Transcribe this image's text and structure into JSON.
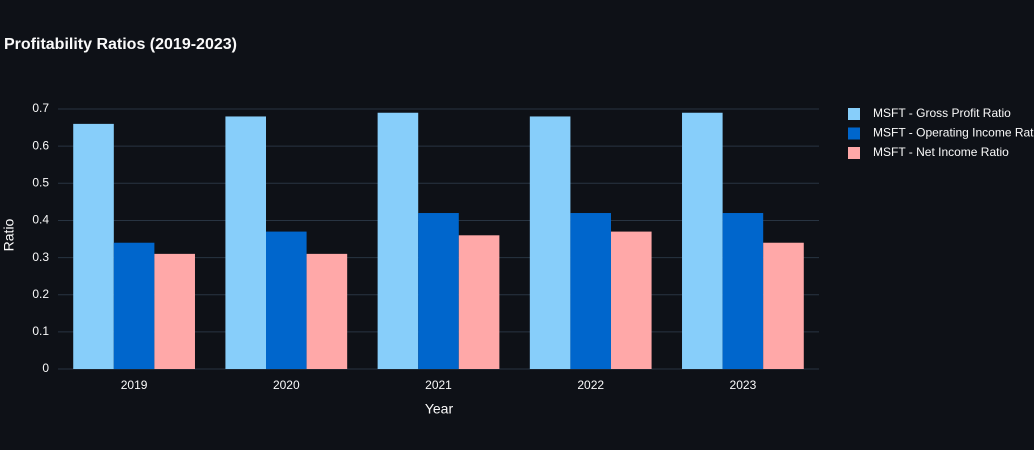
{
  "chart_data": {
    "type": "bar",
    "title": "Profitability Ratios (2019-2023)",
    "x_label": "Year",
    "y_label": "Ratio",
    "categories": [
      "2019",
      "2020",
      "2021",
      "2022",
      "2023"
    ],
    "series": [
      {
        "name": "MSFT - Gross Profit Ratio",
        "color": "#87cefa",
        "values": [
          0.66,
          0.68,
          0.69,
          0.68,
          0.69
        ]
      },
      {
        "name": "MSFT - Operating Income Ratio",
        "color": "#0066cc",
        "values": [
          0.34,
          0.37,
          0.42,
          0.42,
          0.42
        ]
      },
      {
        "name": "MSFT - Net Income Ratio",
        "color": "#ffa8a8",
        "values": [
          0.31,
          0.31,
          0.36,
          0.37,
          0.34
        ]
      }
    ],
    "ylim": [
      0,
      0.72
    ],
    "yticks": [
      0,
      0.1,
      0.2,
      0.3,
      0.4,
      0.5,
      0.6,
      0.7
    ],
    "grid": true,
    "legend": "right"
  }
}
